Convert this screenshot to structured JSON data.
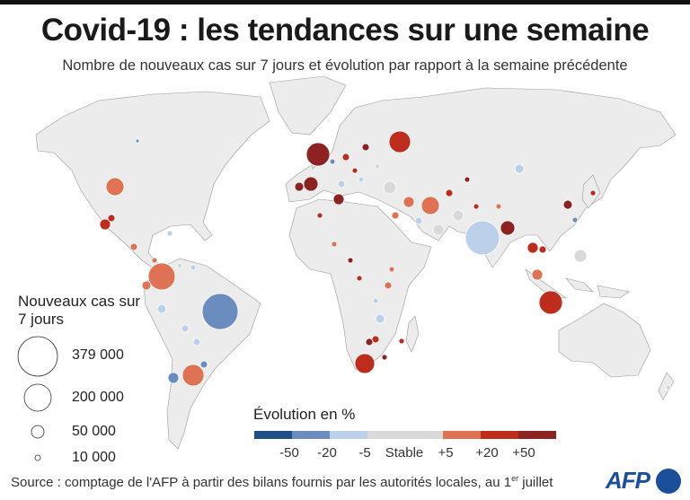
{
  "header": {
    "title": "Covid-19 : les tendances sur une semaine",
    "subtitle": "Nombre de nouveaux cas sur 7 jours et évolution par rapport à la semaine précédente"
  },
  "size_legend": {
    "title": "Nouveaux cas sur 7 jours",
    "items": [
      {
        "value": 379000,
        "label": "379 000"
      },
      {
        "value": 200000,
        "label": "200 000"
      },
      {
        "value": 50000,
        "label": "50 000"
      },
      {
        "value": 10000,
        "label": "10 000"
      }
    ]
  },
  "color_legend": {
    "title": "Évolution en %",
    "labels": [
      "-50",
      "-20",
      "-5",
      "Stable",
      "+5",
      "+20",
      "+50"
    ],
    "colors": [
      "#1f4f86",
      "#6a8cbe",
      "#bcd0ea",
      "#d9d9d9",
      "#e07254",
      "#be2d1c",
      "#8c2222"
    ]
  },
  "footer": {
    "source_prefix": "Source : comptage de l'AFP à partir des bilans fournis par les autorités locales, au 1",
    "source_sup": "er",
    "source_suffix": " juillet",
    "logo": "AFP"
  }
}
